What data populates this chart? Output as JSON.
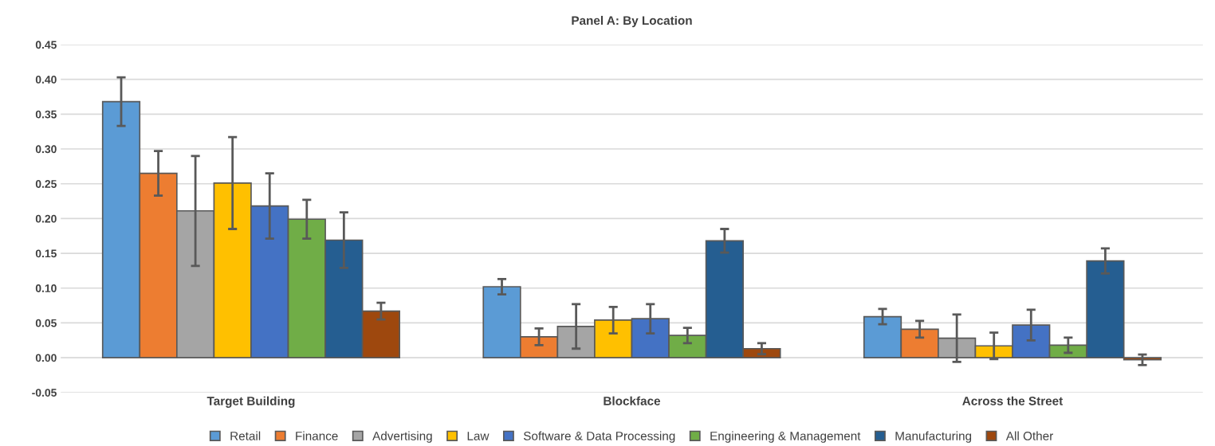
{
  "chart_data": {
    "type": "bar",
    "title": "Panel A: By Location",
    "categories": [
      "Target Building",
      "Blockface",
      "Across the Street"
    ],
    "series": [
      {
        "name": "Retail",
        "color": "#5b9bd5",
        "values": [
          0.368,
          0.102,
          0.059
        ],
        "errors": [
          0.035,
          0.011,
          0.011
        ]
      },
      {
        "name": "Finance",
        "color": "#ed7d31",
        "values": [
          0.265,
          0.03,
          0.041
        ],
        "errors": [
          0.032,
          0.012,
          0.012
        ]
      },
      {
        "name": "Advertising",
        "color": "#a5a5a5",
        "values": [
          0.211,
          0.045,
          0.028
        ],
        "errors": [
          0.079,
          0.032,
          0.034
        ]
      },
      {
        "name": "Law",
        "color": "#ffc000",
        "values": [
          0.251,
          0.054,
          0.017
        ],
        "errors": [
          0.066,
          0.019,
          0.019
        ]
      },
      {
        "name": "Software & Data Processing",
        "color": "#4472c4",
        "values": [
          0.218,
          0.056,
          0.047
        ],
        "errors": [
          0.047,
          0.021,
          0.022
        ]
      },
      {
        "name": "Engineering & Management",
        "color": "#70ad47",
        "values": [
          0.199,
          0.032,
          0.018
        ],
        "errors": [
          0.028,
          0.011,
          0.011
        ]
      },
      {
        "name": "Manufacturing",
        "color": "#255e91",
        "values": [
          0.169,
          0.168,
          0.139
        ],
        "errors": [
          0.04,
          0.017,
          0.018
        ]
      },
      {
        "name": "All Other",
        "color": "#9e480e",
        "values": [
          0.067,
          0.013,
          -0.003
        ],
        "errors": [
          0.012,
          0.008,
          0.0075
        ]
      }
    ],
    "ylim": [
      -0.05,
      0.45
    ],
    "yticks": [
      {
        "value": -0.05,
        "label": "-0.05"
      },
      {
        "value": 0,
        "label": "0.00"
      },
      {
        "value": 0.05,
        "label": "0.05"
      },
      {
        "value": 0.1,
        "label": "0.10"
      },
      {
        "value": 0.15,
        "label": "0.15"
      },
      {
        "value": 0.2,
        "label": "0.20"
      },
      {
        "value": 0.25,
        "label": "0.25"
      },
      {
        "value": 0.3,
        "label": "0.30"
      },
      {
        "value": 0.35,
        "label": "0.35"
      },
      {
        "value": 0.4,
        "label": "0.40"
      },
      {
        "value": 0.45,
        "label": "0.45"
      }
    ],
    "grid": "y",
    "legend": "bottom"
  }
}
